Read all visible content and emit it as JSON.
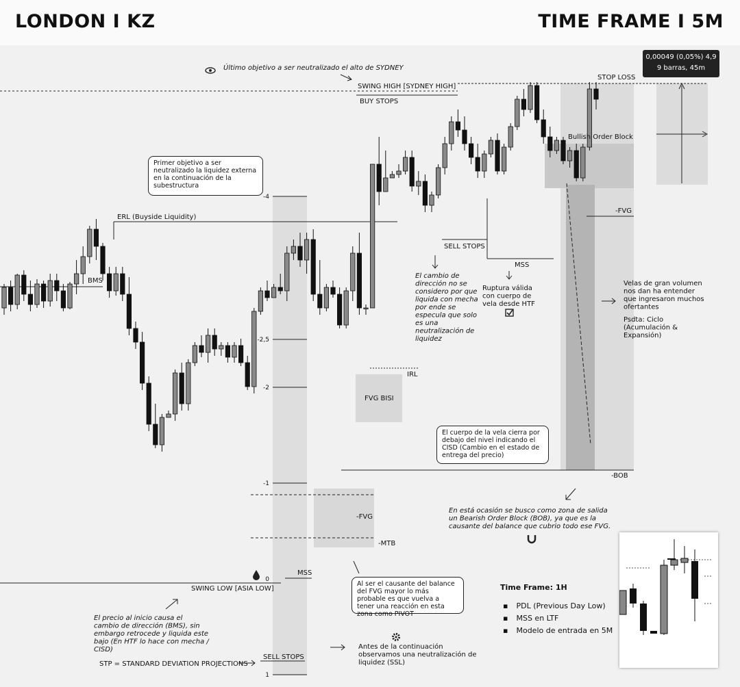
{
  "header": {
    "left": "LONDON I KZ",
    "right": "TIME FRAME I 5M"
  },
  "tooltip": {
    "line1": "0,00049 (0,05%) 4,9",
    "line2": "9 barras, 45m"
  },
  "levels": [
    {
      "label": "STOP LOSS"
    },
    {
      "label": "SWING HIGH [SYDNEY HIGH]"
    },
    {
      "label": "BUY STOPS"
    },
    {
      "label": "Bullish Order Block"
    },
    {
      "label": "ERL (Buyside Liquidity)"
    },
    {
      "label": "-FVG"
    },
    {
      "label": "SELL STOPS"
    },
    {
      "label": "MSS"
    },
    {
      "label": "BMS"
    },
    {
      "label": "IRL"
    },
    {
      "label": "FVG BISI"
    },
    {
      "label": "-BOB"
    },
    {
      "label": "-FVG"
    },
    {
      "label": "-MTB"
    },
    {
      "label": "MSS"
    },
    {
      "label": "SWING LOW [ASIA LOW]"
    },
    {
      "label": "SELL STOPS"
    }
  ],
  "notes": {
    "sydney": "Último objetivo a ser neutralizado el alto de SYDNEY",
    "first_target": "Primer objetivo a ser neutralizado la liquidez externa en la continuación de la subestructura",
    "direction": "El cambio de dirección no se considero por que liquida con mecha por ende se especula que solo es una neutralización de liquidez",
    "rupture": "Ruptura válida con cuerpo de vela desde HTF",
    "volume": "Velas de gran volumen nos dan ha entender que ingresaron muchos ofertantes",
    "psdta": "Psdta: Ciclo (Acumulación & Expansión)",
    "body_close": "El cuerpo de la vela cierra por debajo del nivel indicando el CISD (Cambio en el estado de entrega del precio)",
    "bob": "En está ocasión se busco como zona de salida un Bearish Order Block (BOB), ya que es la causante del balance que cubrio todo ese FVG.",
    "pivot": "Al ser el causante del balance del FVG mayor lo más probable es que vuelva a tener una reacción en esta zona como PIVOT",
    "price_start": "El precio al inicio causa el cambio de dirección (BMS), sin embargo retrocede y liquida este bajo (En HTF lo hace con mecha / CISD)",
    "ssl": "Antes de la continuación observamos una neutralización de liquidez (SSL)",
    "stp": "STP = STANDARD DEVIATION PROJECTIONS"
  },
  "htf": {
    "title": "Time Frame: 1H",
    "items": [
      "PDL (Previous Day Low)",
      "MSS en LTF",
      "Modelo de entrada en 5M"
    ]
  },
  "chart_data": {
    "type": "candlestick",
    "price_axis": "hidden",
    "std_projections": [
      {
        "label": "-4",
        "value": -4
      },
      {
        "label": "-2,5",
        "value": -2.5
      },
      {
        "label": "-2",
        "value": -2
      },
      {
        "label": "-1",
        "value": -1
      },
      {
        "label": "0",
        "value": 0
      },
      {
        "label": "1",
        "value": 1
      }
    ],
    "candles_ohlc": [
      [
        550,
        585,
        540,
        580
      ],
      [
        580,
        590,
        545,
        555
      ],
      [
        555,
        600,
        548,
        598
      ],
      [
        598,
        605,
        560,
        570
      ],
      [
        570,
        590,
        545,
        555
      ],
      [
        555,
        592,
        550,
        585
      ],
      [
        585,
        590,
        550,
        560
      ],
      [
        560,
        600,
        552,
        590
      ],
      [
        590,
        600,
        560,
        575
      ],
      [
        575,
        585,
        545,
        550
      ],
      [
        550,
        588,
        548,
        585
      ],
      [
        585,
        620,
        570,
        600
      ],
      [
        600,
        640,
        585,
        625
      ],
      [
        625,
        670,
        615,
        665
      ],
      [
        665,
        680,
        620,
        640
      ],
      [
        640,
        645,
        590,
        600
      ],
      [
        600,
        610,
        565,
        575
      ],
      [
        575,
        610,
        568,
        600
      ],
      [
        600,
        610,
        560,
        570
      ],
      [
        570,
        595,
        510,
        520
      ],
      [
        520,
        530,
        490,
        500
      ],
      [
        500,
        515,
        430,
        440
      ],
      [
        440,
        450,
        370,
        380
      ],
      [
        380,
        410,
        345,
        350
      ],
      [
        350,
        395,
        340,
        390
      ],
      [
        390,
        400,
        400,
        395
      ],
      [
        395,
        460,
        385,
        455
      ],
      [
        455,
        470,
        400,
        410
      ],
      [
        410,
        475,
        400,
        470
      ],
      [
        470,
        500,
        465,
        495
      ],
      [
        495,
        510,
        478,
        485
      ],
      [
        485,
        520,
        470,
        510
      ],
      [
        510,
        520,
        480,
        490
      ],
      [
        490,
        500,
        480,
        495
      ],
      [
        495,
        500,
        470,
        478
      ],
      [
        478,
        500,
        470,
        495
      ],
      [
        495,
        505,
        465,
        470
      ],
      [
        470,
        480,
        430,
        435
      ],
      [
        435,
        550,
        425,
        545
      ],
      [
        545,
        580,
        540,
        575
      ],
      [
        575,
        590,
        560,
        565
      ],
      [
        565,
        585,
        575,
        580
      ],
      [
        580,
        600,
        570,
        575
      ],
      [
        575,
        640,
        560,
        630
      ],
      [
        630,
        650,
        620,
        640
      ],
      [
        640,
        660,
        610,
        620
      ],
      [
        620,
        660,
        600,
        650
      ],
      [
        650,
        665,
        560,
        570
      ],
      [
        570,
        620,
        540,
        550
      ],
      [
        550,
        585,
        545,
        580
      ],
      [
        580,
        590,
        565,
        570
      ],
      [
        570,
        580,
        520,
        525
      ],
      [
        525,
        580,
        520,
        575
      ],
      [
        575,
        640,
        560,
        630
      ],
      [
        630,
        660,
        540,
        550
      ],
      [
        550,
        555,
        540,
        550
      ],
      [
        550,
        560,
        760,
        760
      ],
      [
        760,
        800,
        700,
        720
      ],
      [
        720,
        730,
        780,
        740
      ],
      [
        740,
        750,
        740,
        745
      ],
      [
        745,
        760,
        740,
        750
      ],
      [
        750,
        780,
        745,
        770
      ],
      [
        770,
        780,
        720,
        728
      ],
      [
        728,
        750,
        715,
        735
      ],
      [
        735,
        745,
        690,
        700
      ],
      [
        700,
        720,
        690,
        715
      ],
      [
        715,
        760,
        710,
        755
      ],
      [
        755,
        800,
        745,
        790
      ],
      [
        790,
        830,
        780,
        822
      ],
      [
        822,
        840,
        800,
        810
      ],
      [
        810,
        830,
        780,
        790
      ],
      [
        790,
        800,
        760,
        770
      ],
      [
        770,
        790,
        740,
        750
      ],
      [
        750,
        780,
        740,
        775
      ],
      [
        775,
        800,
        770,
        795
      ],
      [
        795,
        805,
        745,
        750
      ],
      [
        750,
        790,
        745,
        785
      ],
      [
        785,
        820,
        780,
        815
      ],
      [
        815,
        860,
        810,
        855
      ],
      [
        855,
        870,
        830,
        840
      ],
      [
        840,
        880,
        835,
        875
      ],
      [
        875,
        880,
        820,
        825
      ],
      [
        825,
        840,
        790,
        800
      ],
      [
        800,
        815,
        770,
        780
      ],
      [
        780,
        800,
        775,
        795
      ],
      [
        795,
        800,
        760,
        765
      ],
      [
        765,
        785,
        755,
        780
      ],
      [
        780,
        790,
        735,
        740
      ],
      [
        740,
        790,
        735,
        785
      ],
      [
        785,
        880,
        780,
        870
      ],
      [
        870,
        880,
        840,
        855
      ]
    ]
  }
}
